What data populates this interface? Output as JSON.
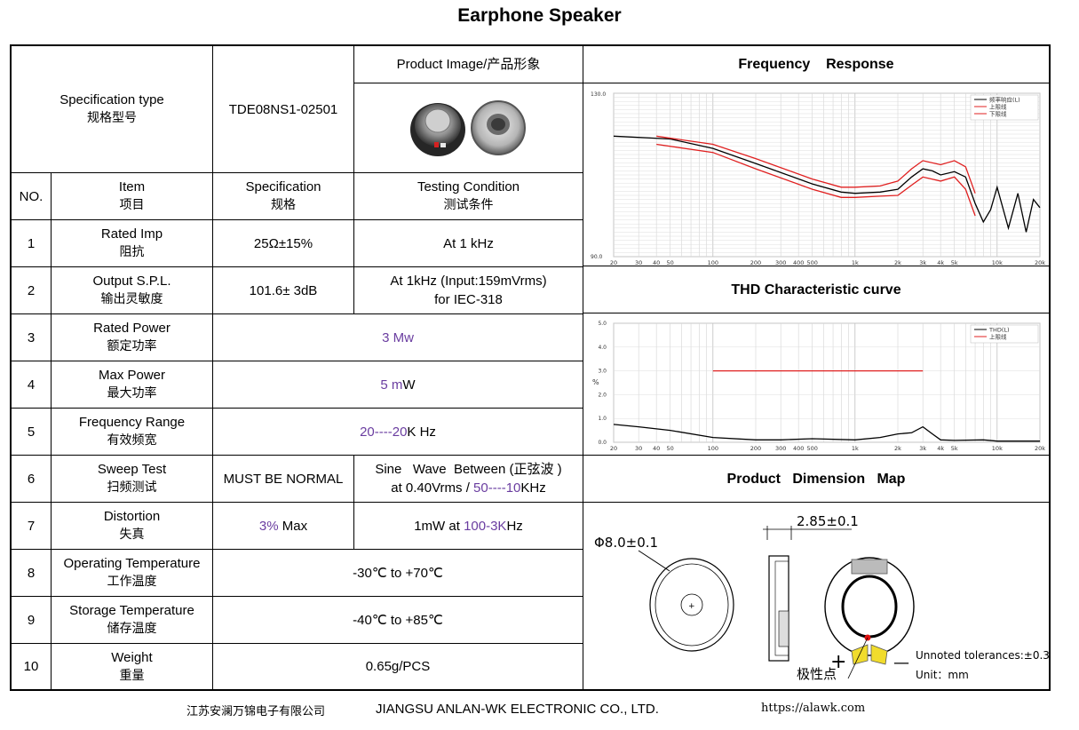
{
  "title": "Earphone Speaker",
  "spec_type": {
    "label_en": "Specification type",
    "label_zh": "规格型号",
    "value": "TDE08NS1-02501"
  },
  "product_image_label": "Product Image/产品形象",
  "headers": {
    "no": "NO.",
    "item_en": "Item",
    "item_zh": "项目",
    "spec_en": "Specification",
    "spec_zh": "规格",
    "cond_en": "Testing Condition",
    "cond_zh": "测试条件"
  },
  "rows": [
    {
      "no": "1",
      "item_en": "Rated Imp",
      "item_zh": "阻抗",
      "spec": "25Ω±15%",
      "cond": "At 1 kHz"
    },
    {
      "no": "2",
      "item_en": "Output S.P.L.",
      "item_zh": "输出灵敏度",
      "spec": "101.6± 3dB",
      "cond_line1": "At 1kHz (Input:159mVrms)",
      "cond_line2": "for IEC-318"
    },
    {
      "no": "3",
      "item_en": "Rated Power",
      "item_zh": "额定功率",
      "value": "3 Mw"
    },
    {
      "no": "4",
      "item_en": "Max Power",
      "item_zh": "最大功率",
      "value_num": "5 m",
      "value_unit": "W"
    },
    {
      "no": "5",
      "item_en": "Frequency Range",
      "item_zh": "有效频宽",
      "v1": "20",
      "v2": "----",
      "v3": "20",
      "v4": "K Hz"
    },
    {
      "no": "6",
      "item_en": "Sweep Test",
      "item_zh": "扫频测试",
      "spec": "MUST BE NORMAL",
      "cond_line1": "Sine   Wave  Between (正弦波 )",
      "cond_a": "at 0.40Vrms / ",
      "cond_b": "50",
      "cond_c": "----",
      "cond_d": "10",
      "cond_e": "KHz"
    },
    {
      "no": "7",
      "item_en": "Distortion",
      "item_zh": "失真",
      "spec_a": "3%",
      "spec_b": " Max",
      "cond_a": "1mW at ",
      "cond_b": "100-3K",
      "cond_c": "Hz"
    },
    {
      "no": "8",
      "item_en": "Operating Temperature",
      "item_zh": "工作温度",
      "value": "-30℃ to +70℃"
    },
    {
      "no": "9",
      "item_en": "Storage Temperature",
      "item_zh": "储存温度",
      "value": "-40℃ to +85℃"
    },
    {
      "no": "10",
      "item_en": "Weight",
      "item_zh": "重量",
      "value": "0.65g/PCS"
    }
  ],
  "sections": {
    "freq_response": "Frequency    Response",
    "thd": "THD Characteristic curve",
    "dimension": "Product   Dimension   Map"
  },
  "dimension_map": {
    "diameter": "Φ8.0±0.1",
    "thickness": "2.85±0.1",
    "plus": "+",
    "minus": "—",
    "polarity": "极性点",
    "tolerance": "Unnoted tolerances:±0.3",
    "unit": "Unit：mm"
  },
  "chart_data": [
    {
      "type": "line",
      "x_scale": "log",
      "xlim": [
        20,
        20000
      ],
      "x_ticks": [
        "20",
        "30",
        "40",
        "50",
        "100",
        "200",
        "300",
        "400",
        "500",
        "1k",
        "2k",
        "3k",
        "4k",
        "5k",
        "10k",
        "20k"
      ],
      "y_top_label": "130.0",
      "y_bottom_label": "90.0",
      "legend": [
        "频率响应(L)",
        "上限线",
        "下限线"
      ],
      "legend_position": "top-right",
      "grid": true,
      "colors": {
        "response": "#000000",
        "limits": "#e02020"
      },
      "series": [
        {
          "name": "频率响应(L)",
          "x": [
            20,
            50,
            100,
            200,
            500,
            800,
            1000,
            1500,
            2000,
            2500,
            3000,
            3500,
            4000,
            5000,
            6000,
            7000,
            8000,
            9000,
            10000,
            12000,
            14000,
            16000,
            18000,
            20000
          ],
          "y": [
            119.5,
            118.8,
            116.5,
            112.8,
            107.8,
            105.8,
            105.5,
            105.8,
            106.5,
            109.5,
            111.5,
            111.0,
            110.0,
            110.8,
            109.5,
            103.0,
            98.5,
            101.5,
            107.0,
            97.0,
            105.5,
            96.0,
            104.0,
            102.0
          ]
        },
        {
          "name": "上限线",
          "x": [
            40,
            100,
            200,
            500,
            800,
            1000,
            1500,
            2000,
            2500,
            3000,
            4000,
            5000,
            6000,
            7000
          ],
          "y": [
            119.5,
            117.5,
            114.0,
            109.0,
            107.0,
            107.0,
            107.3,
            108.5,
            111.5,
            113.5,
            112.5,
            113.5,
            112.0,
            105.5
          ]
        },
        {
          "name": "下限线",
          "x": [
            40,
            100,
            200,
            500,
            800,
            1000,
            1500,
            2000,
            2500,
            3000,
            4000,
            5000,
            6000,
            7000
          ],
          "y": [
            117.5,
            115.5,
            111.5,
            106.5,
            104.5,
            104.5,
            104.8,
            105.0,
            107.5,
            109.5,
            108.5,
            109.5,
            106.5,
            100.0
          ]
        }
      ]
    },
    {
      "type": "line",
      "x_scale": "log",
      "xlim": [
        20,
        20000
      ],
      "ylim": [
        0,
        5
      ],
      "x_ticks": [
        "20",
        "30",
        "40",
        "50",
        "100",
        "200",
        "300",
        "400",
        "500",
        "1k",
        "2k",
        "3k",
        "4k",
        "5k",
        "10k",
        "20k"
      ],
      "y_ticks": [
        "0.0",
        "1.0",
        "2.0",
        "3.0",
        "4.0",
        "5.0"
      ],
      "ylabel": "%",
      "legend": [
        "THD(L)",
        "上限线"
      ],
      "legend_position": "top-right",
      "grid": true,
      "colors": {
        "thd": "#000000",
        "limit": "#e02020"
      },
      "series": [
        {
          "name": "THD(L)",
          "x": [
            20,
            30,
            50,
            100,
            200,
            300,
            500,
            1000,
            1500,
            2000,
            2500,
            3000,
            3500,
            4000,
            5000,
            8000,
            10000,
            20000
          ],
          "y": [
            0.75,
            0.65,
            0.5,
            0.2,
            0.1,
            0.1,
            0.15,
            0.1,
            0.2,
            0.35,
            0.4,
            0.65,
            0.35,
            0.1,
            0.08,
            0.1,
            0.05,
            0.05
          ]
        },
        {
          "name": "上限线",
          "x": [
            100,
            3000
          ],
          "y": [
            3.0,
            3.0
          ]
        }
      ]
    }
  ],
  "footer": {
    "company_zh": "江苏安澜万锦电子有限公司",
    "company_en": "JIANGSU ANLAN-WK ELECTRONIC CO., LTD.",
    "url": "https://alawk.com"
  }
}
